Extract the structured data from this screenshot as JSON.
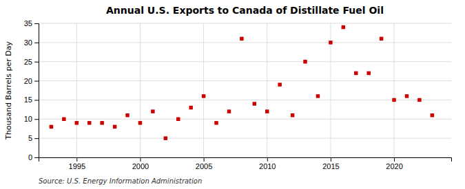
{
  "chart_data": {
    "type": "scatter",
    "title": "Annual U.S. Exports to Canada of Distillate Fuel Oil",
    "ylabel": "Thousand Barrels per Day",
    "source": "Source: U.S. Energy Information Administration",
    "x": [
      1993,
      1994,
      1995,
      1996,
      1997,
      1998,
      1999,
      2000,
      2001,
      2002,
      2003,
      2004,
      2005,
      2006,
      2007,
      2008,
      2009,
      2010,
      2011,
      2012,
      2013,
      2014,
      2015,
      2016,
      2017,
      2018,
      2019,
      2020,
      2021,
      2022,
      2023
    ],
    "values": [
      8,
      10,
      9,
      9,
      9,
      8,
      11,
      9,
      12,
      5,
      10,
      13,
      16,
      9,
      12,
      31,
      14,
      12,
      19,
      11,
      25,
      16,
      30,
      34,
      22,
      22,
      31,
      15,
      16,
      15,
      11
    ],
    "color": "#cc0000",
    "marker": "square",
    "xlim": [
      1992,
      2024.5
    ],
    "ylim": [
      0,
      35
    ],
    "xticks": [
      1995,
      2000,
      2005,
      2010,
      2015,
      2020
    ],
    "yticks": [
      0,
      5,
      10,
      15,
      20,
      25,
      30,
      35
    ],
    "grid": true
  }
}
